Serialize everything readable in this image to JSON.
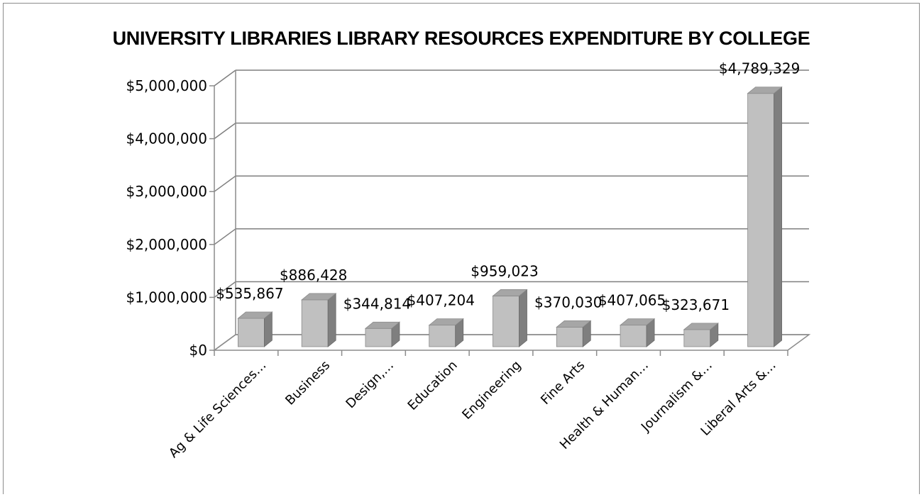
{
  "chart_data": {
    "type": "bar",
    "title": "UNIVERSITY LIBRARIES LIBRARY RESOURCES EXPENDITURE BY COLLEGE",
    "categories": [
      "Ag & Life Sciences…",
      "Business",
      "Design,…",
      "Education",
      "Engineering",
      "Fine Arts",
      "Health & Human…",
      "Journalism &…",
      "Liberal Arts &…"
    ],
    "values": [
      535867,
      886428,
      344814,
      407204,
      959023,
      370030,
      407065,
      323671,
      4789329
    ],
    "data_labels": [
      "$535,867",
      "$886,428",
      "$344,814",
      "$407,204",
      "$959,023",
      "$370,030",
      "$407,065",
      "$323,671",
      "$4,789,329"
    ],
    "y_ticks": [
      0,
      1000000,
      2000000,
      3000000,
      4000000,
      5000000
    ],
    "y_tick_labels": [
      "$0",
      "$1,000,000",
      "$2,000,000",
      "$3,000,000",
      "$4,000,000",
      "$5,000,000"
    ],
    "ylim": [
      0,
      5000000
    ],
    "xlabel": "",
    "ylabel": "",
    "grid": true,
    "legend": "none",
    "style": "3d-column",
    "colors": {
      "bar_front": "#c0c0c0",
      "bar_side": "#7f7f7f",
      "bar_top": "#a6a6a6",
      "gridline": "#7f7f7f",
      "axis": "#8c8c8c"
    }
  }
}
